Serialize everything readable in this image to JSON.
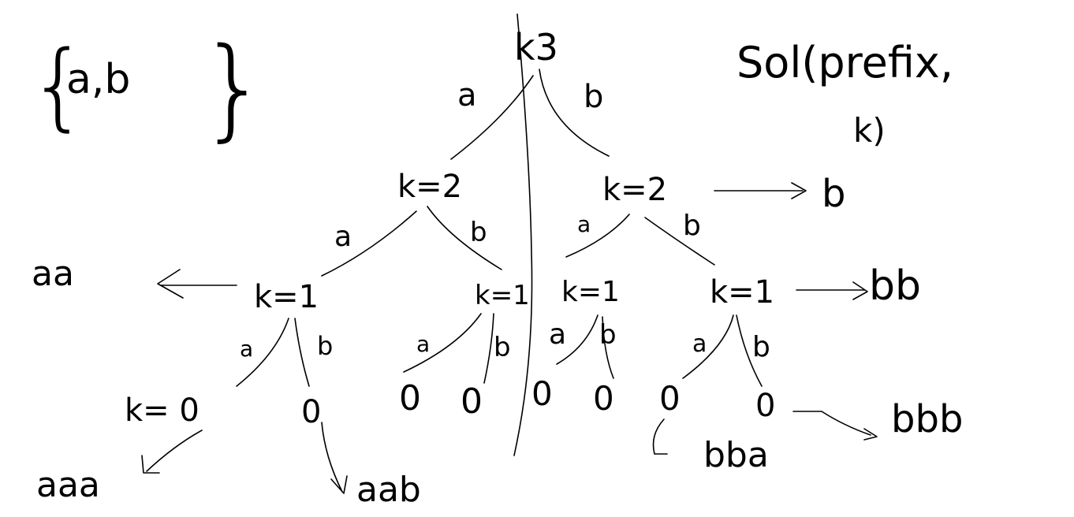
{
  "alphabet": {
    "open": "{",
    "text": "a,b",
    "close": "}"
  },
  "signature": {
    "line1": "Sol(prefix,",
    "line2": "k)"
  },
  "root": {
    "label": "k3"
  },
  "edges": {
    "root_a": "a",
    "root_b": "b",
    "left2_a": "a",
    "left2_b": "b",
    "right2_a": "a",
    "right2_b": "b",
    "n1_a": "a",
    "n1_b": "b",
    "n2_a": "a",
    "n2_b": "b",
    "n3_a": "a",
    "n3_b": "b",
    "n4_a": "a",
    "n4_b": "b"
  },
  "nodes": {
    "level2_left": "k=2",
    "level2_right": "k=2",
    "level1_1": "k=1",
    "level1_2": "k=1",
    "level1_3": "k=1",
    "level1_4": "k=1",
    "leaf_1": "k= 0",
    "leaf_2": "0",
    "leaf_3": "0",
    "leaf_4": "0",
    "leaf_5": "0",
    "leaf_6": "0",
    "leaf_7": "0",
    "leaf_8": "0"
  },
  "results": {
    "aa": "aa",
    "b": "b",
    "bb": "bb",
    "aaa": "aaa",
    "aab": "aab",
    "bba": "bba",
    "bbb": "bbb"
  },
  "colors": {
    "ink": "#000000",
    "background": "#ffffff"
  }
}
